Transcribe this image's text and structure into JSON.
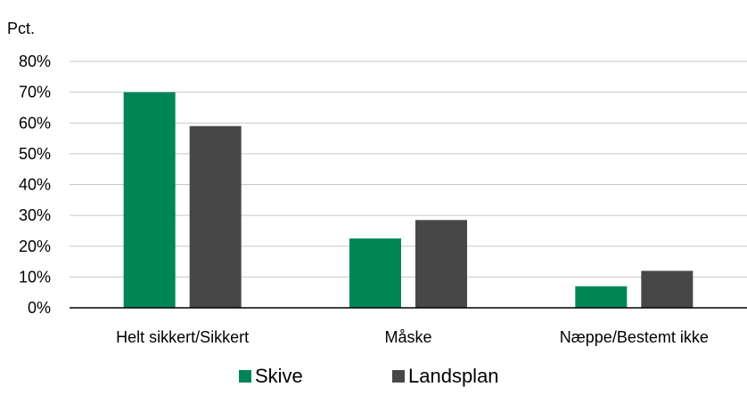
{
  "chart_data": {
    "type": "bar",
    "ylabel": "Pct.",
    "ylim": [
      0,
      80
    ],
    "yticks": [
      0,
      10,
      20,
      30,
      40,
      50,
      60,
      70,
      80
    ],
    "ytick_labels": [
      "0%",
      "10%",
      "20%",
      "30%",
      "40%",
      "50%",
      "60%",
      "70%",
      "80%"
    ],
    "categories": [
      "Helt sikkert/Sikkert",
      "Måske",
      "Næppe/Bestemt ikke"
    ],
    "series": [
      {
        "name": "Skive",
        "color": "#008557",
        "values": [
          70,
          22.5,
          7
        ]
      },
      {
        "name": "Landsplan",
        "color": "#474747",
        "values": [
          59,
          28.5,
          12
        ]
      }
    ],
    "grid": true,
    "legend_position": "bottom-center"
  }
}
